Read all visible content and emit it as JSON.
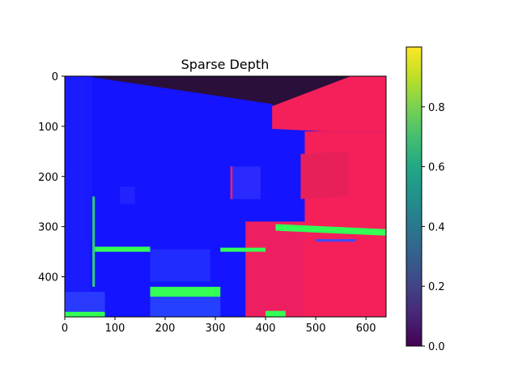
{
  "chart_data": [
    {
      "type": "heatmap",
      "title": "Sparse Depth",
      "xlabel": "",
      "ylabel": "",
      "xlim": [
        0,
        640
      ],
      "ylim": [
        480,
        0
      ],
      "x_ticks": [
        0,
        100,
        200,
        300,
        400,
        500,
        600
      ],
      "y_ticks": [
        0,
        100,
        200,
        300,
        400
      ],
      "grid": false,
      "content": "normal-map style image of a room interior (blue walls, red/pink cabinets, green highlights)",
      "colors": {
        "wall": "#1414ff",
        "cabinet": "#f5205a",
        "highlight": "#33ff55",
        "ceiling": "#2a0f3a"
      }
    },
    {
      "type": "colorbar",
      "colormap": "viridis",
      "range": [
        0.0,
        1.0
      ],
      "ticks": [
        "0.0",
        "0.2",
        "0.4",
        "0.6",
        "0.8"
      ]
    }
  ]
}
